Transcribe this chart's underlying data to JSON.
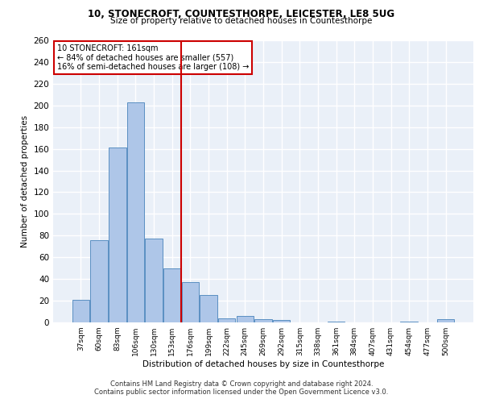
{
  "title1": "10, STONECROFT, COUNTESTHORPE, LEICESTER, LE8 5UG",
  "title2": "Size of property relative to detached houses in Countesthorpe",
  "xlabel": "Distribution of detached houses by size in Countesthorpe",
  "ylabel": "Number of detached properties",
  "footer1": "Contains HM Land Registry data © Crown copyright and database right 2024.",
  "footer2": "Contains public sector information licensed under the Open Government Licence v3.0.",
  "annotation_title": "10 STONECROFT: 161sqm",
  "annotation_line1": "← 84% of detached houses are smaller (557)",
  "annotation_line2": "16% of semi-detached houses are larger (108) →",
  "bar_categories": [
    "37sqm",
    "60sqm",
    "83sqm",
    "106sqm",
    "130sqm",
    "153sqm",
    "176sqm",
    "199sqm",
    "222sqm",
    "245sqm",
    "269sqm",
    "292sqm",
    "315sqm",
    "338sqm",
    "361sqm",
    "384sqm",
    "407sqm",
    "431sqm",
    "454sqm",
    "477sqm",
    "500sqm"
  ],
  "bar_values": [
    21,
    76,
    161,
    203,
    77,
    50,
    37,
    25,
    4,
    6,
    3,
    2,
    0,
    0,
    1,
    0,
    0,
    0,
    1,
    0,
    3
  ],
  "bar_color": "#aec6e8",
  "bar_edgecolor": "#5a8fc2",
  "vline_x": 5.5,
  "vline_color": "#cc0000",
  "annotation_box_color": "#cc0000",
  "bg_color": "#eaf0f8",
  "grid_color": "#ffffff",
  "ylim": [
    0,
    260
  ],
  "yticks": [
    0,
    20,
    40,
    60,
    80,
    100,
    120,
    140,
    160,
    180,
    200,
    220,
    240,
    260
  ]
}
